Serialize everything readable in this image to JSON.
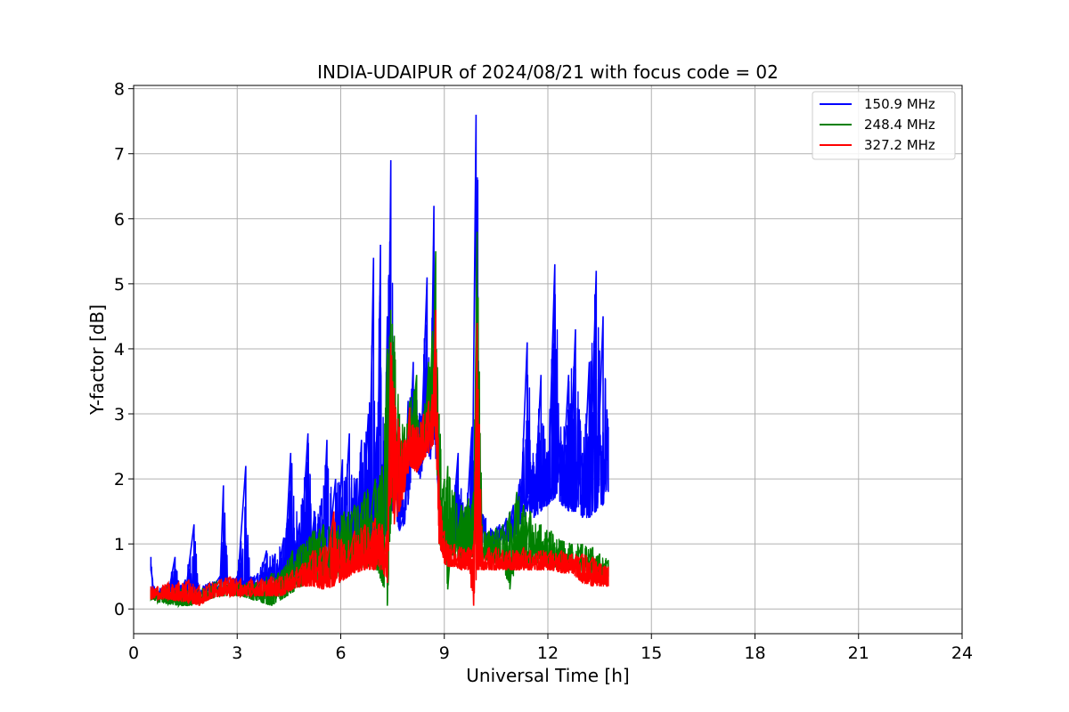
{
  "chart_data": {
    "type": "line",
    "title": "INDIA-UDAIPUR of 2024/08/21 with focus code = 02",
    "xlabel": "Universal Time [h]",
    "ylabel": "Y-factor [dB]",
    "xlim": [
      0,
      24
    ],
    "ylim": [
      -0.38,
      8.05
    ],
    "xticks": [
      0,
      3,
      6,
      9,
      12,
      15,
      18,
      21,
      24
    ],
    "yticks": [
      0,
      1,
      2,
      3,
      4,
      5,
      6,
      7,
      8
    ],
    "grid": true,
    "legend_position": "top-right",
    "series": [
      {
        "name": "150.9 MHz",
        "color": "#0000ff",
        "x": [
          0.5,
          0.55,
          0.6,
          0.7,
          0.85,
          1.0,
          1.2,
          1.35,
          1.5,
          1.75,
          1.9,
          2.2,
          2.5,
          2.6,
          2.75,
          3.0,
          3.25,
          3.4,
          3.6,
          3.85,
          4.1,
          4.35,
          4.55,
          4.8,
          5.05,
          5.25,
          5.45,
          5.6,
          5.85,
          6.05,
          6.25,
          6.45,
          6.6,
          6.8,
          6.95,
          7.05,
          7.15,
          7.25,
          7.35,
          7.45,
          7.55,
          7.7,
          7.85,
          7.95,
          8.1,
          8.3,
          8.5,
          8.6,
          8.7,
          8.8,
          8.9,
          9.0,
          9.2,
          9.4,
          9.6,
          9.8,
          9.92,
          9.97,
          10.05,
          10.2,
          10.4,
          10.6,
          10.8,
          11.0,
          11.2,
          11.4,
          11.6,
          11.8,
          12.0,
          12.2,
          12.4,
          12.6,
          12.8,
          13.0,
          13.2,
          13.4,
          13.6,
          13.75
        ],
        "y": [
          0.8,
          0.45,
          0.35,
          0.3,
          0.35,
          0.4,
          0.8,
          0.35,
          0.45,
          1.3,
          0.35,
          0.4,
          0.5,
          1.9,
          0.45,
          0.5,
          2.2,
          0.5,
          0.55,
          0.9,
          0.85,
          1.1,
          2.4,
          1.3,
          2.7,
          1.5,
          1.7,
          2.6,
          2.0,
          2.3,
          2.7,
          2.0,
          2.6,
          3.0,
          5.4,
          2.8,
          5.6,
          2.5,
          4.5,
          6.9,
          3.5,
          2.6,
          1.5,
          3.2,
          3.8,
          3.0,
          5.1,
          3.5,
          6.2,
          3.2,
          1.6,
          1.2,
          1.4,
          2.4,
          1.5,
          2.8,
          7.6,
          6.6,
          1.5,
          1.4,
          1.2,
          1.3,
          1.4,
          1.6,
          2.0,
          4.1,
          2.2,
          3.6,
          2.4,
          5.3,
          2.5,
          3.6,
          4.3,
          2.4,
          3.8,
          5.2,
          4.5,
          2.8
        ],
        "y_low": [
          0.6,
          0.25,
          0.2,
          0.2,
          0.22,
          0.22,
          0.25,
          0.2,
          0.22,
          0.22,
          0.2,
          0.25,
          0.3,
          0.3,
          0.28,
          0.3,
          0.28,
          0.28,
          0.3,
          0.3,
          0.3,
          0.35,
          0.4,
          0.45,
          0.55,
          0.55,
          0.6,
          0.6,
          0.65,
          0.75,
          0.8,
          0.85,
          0.9,
          0.95,
          1.0,
          1.0,
          1.0,
          0.8,
          0.9,
          1.5,
          1.5,
          1.2,
          1.3,
          1.6,
          2.3,
          2.0,
          2.4,
          2.3,
          2.6,
          2.0,
          0.9,
          0.85,
          1.0,
          0.9,
          0.9,
          0.95,
          1.2,
          1.0,
          1.0,
          0.95,
          0.95,
          1.0,
          1.0,
          1.05,
          1.3,
          1.5,
          1.4,
          1.5,
          1.6,
          1.7,
          1.6,
          1.5,
          1.5,
          1.4,
          1.4,
          1.5,
          1.6,
          1.8
        ]
      },
      {
        "name": "248.4 MHz",
        "color": "#008000",
        "x": [
          0.5,
          0.7,
          1.0,
          1.3,
          1.6,
          1.9,
          2.2,
          2.5,
          2.8,
          3.1,
          3.4,
          3.7,
          4.0,
          4.3,
          4.6,
          4.9,
          5.2,
          5.5,
          5.8,
          6.1,
          6.4,
          6.7,
          7.0,
          7.2,
          7.35,
          7.45,
          7.55,
          7.7,
          7.85,
          8.0,
          8.2,
          8.4,
          8.55,
          8.65,
          8.75,
          8.85,
          9.0,
          9.1,
          9.3,
          9.5,
          9.7,
          9.85,
          9.95,
          10.1,
          10.3,
          10.5,
          10.7,
          10.9,
          11.1,
          11.3,
          11.5,
          11.8,
          12.1,
          12.4,
          12.7,
          13.0,
          13.3,
          13.5,
          13.75
        ],
        "y": [
          0.3,
          0.3,
          0.35,
          0.35,
          0.3,
          0.35,
          0.4,
          0.45,
          0.4,
          0.4,
          0.4,
          0.45,
          0.55,
          0.6,
          0.9,
          1.0,
          1.2,
          1.3,
          1.4,
          1.5,
          1.6,
          1.8,
          2.0,
          2.2,
          4.0,
          4.6,
          4.2,
          3.0,
          2.8,
          3.2,
          3.6,
          3.0,
          3.8,
          4.2,
          5.5,
          3.0,
          2.0,
          2.2,
          1.8,
          1.6,
          1.7,
          1.8,
          5.8,
          1.3,
          1.2,
          1.25,
          1.3,
          1.5,
          1.8,
          1.6,
          1.5,
          1.3,
          1.2,
          1.05,
          1.0,
          1.0,
          0.95,
          0.85,
          0.75
        ],
        "y_low": [
          0.15,
          0.1,
          0.08,
          0.05,
          0.05,
          0.08,
          0.15,
          0.2,
          0.2,
          0.2,
          0.15,
          0.1,
          0.05,
          0.15,
          0.25,
          0.35,
          0.45,
          0.45,
          0.45,
          0.55,
          0.6,
          0.65,
          0.65,
          0.4,
          0.05,
          1.3,
          2.1,
          1.8,
          2.0,
          2.4,
          2.2,
          2.3,
          2.5,
          2.6,
          2.8,
          1.0,
          0.85,
          0.3,
          0.8,
          0.75,
          0.8,
          0.8,
          1.0,
          0.75,
          0.7,
          0.7,
          0.65,
          0.3,
          0.7,
          0.7,
          0.7,
          0.7,
          0.65,
          0.6,
          0.6,
          0.55,
          0.5,
          0.5,
          0.5
        ]
      },
      {
        "name": "327.2 MHz",
        "color": "#ff0000",
        "x": [
          0.5,
          0.7,
          1.0,
          1.3,
          1.6,
          1.9,
          2.2,
          2.5,
          2.8,
          3.1,
          3.4,
          3.7,
          4.0,
          4.3,
          4.6,
          4.9,
          5.2,
          5.5,
          5.8,
          6.1,
          6.4,
          6.7,
          7.0,
          7.2,
          7.35,
          7.45,
          7.55,
          7.7,
          7.85,
          8.0,
          8.2,
          8.4,
          8.55,
          8.65,
          8.75,
          8.85,
          9.0,
          9.1,
          9.3,
          9.5,
          9.7,
          9.85,
          9.95,
          10.1,
          10.3,
          10.5,
          10.7,
          10.9,
          11.1,
          11.3,
          11.5,
          11.8,
          12.1,
          12.4,
          12.7,
          13.0,
          13.3,
          13.5,
          13.75
        ],
        "y": [
          0.35,
          0.35,
          0.4,
          0.4,
          0.45,
          0.35,
          0.4,
          0.45,
          0.5,
          0.45,
          0.45,
          0.45,
          0.5,
          0.5,
          0.6,
          0.7,
          0.9,
          0.95,
          1.5,
          1.0,
          1.2,
          1.3,
          1.4,
          1.3,
          1.2,
          4.1,
          3.4,
          2.8,
          2.6,
          3.1,
          2.8,
          3.0,
          3.2,
          3.3,
          4.6,
          2.0,
          1.2,
          1.0,
          1.0,
          0.95,
          0.95,
          1.0,
          4.4,
          0.95,
          0.95,
          0.95,
          0.9,
          0.9,
          0.9,
          0.95,
          0.9,
          0.9,
          0.9,
          0.9,
          0.85,
          0.85,
          0.8,
          0.7,
          0.65
        ],
        "y_low": [
          0.15,
          0.15,
          0.15,
          0.12,
          0.1,
          0.05,
          0.15,
          0.2,
          0.2,
          0.2,
          0.2,
          0.2,
          0.2,
          0.2,
          0.3,
          0.35,
          0.35,
          0.3,
          0.35,
          0.45,
          0.55,
          0.6,
          0.6,
          0.6,
          0.4,
          1.8,
          1.3,
          1.5,
          1.8,
          2.2,
          2.1,
          2.3,
          2.4,
          2.5,
          2.6,
          1.0,
          0.7,
          0.65,
          0.65,
          0.6,
          0.6,
          0.05,
          0.6,
          0.6,
          0.6,
          0.6,
          0.6,
          0.6,
          0.6,
          0.6,
          0.6,
          0.6,
          0.6,
          0.55,
          0.55,
          0.4,
          0.35,
          0.35,
          0.35
        ]
      }
    ]
  }
}
